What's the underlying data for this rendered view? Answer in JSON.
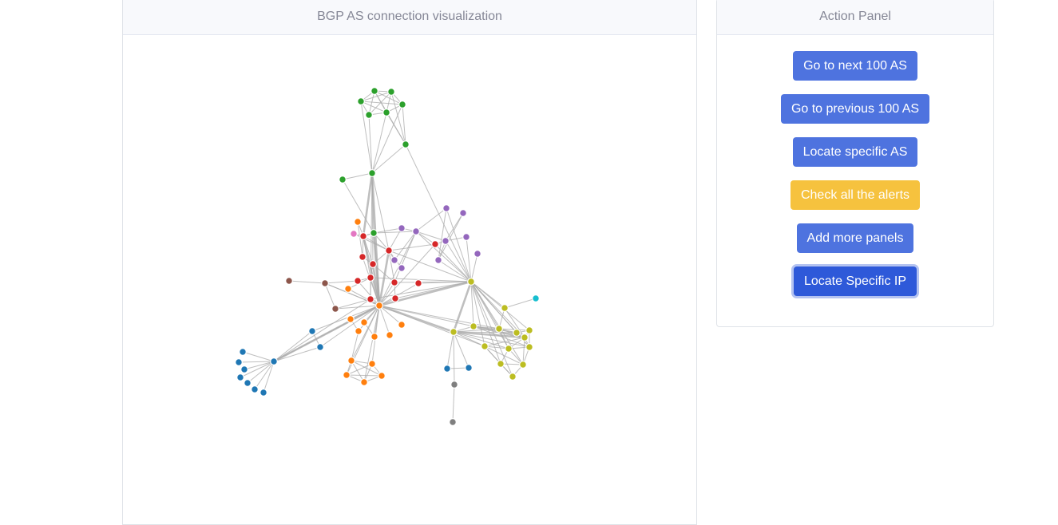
{
  "viz": {
    "title": "BGP AS connection visualization",
    "group_colors": {
      "green": "#2ca02c",
      "purple": "#9467bd",
      "red": "#d62728",
      "orange": "#ff7f0e",
      "pink": "#e377c2",
      "brown": "#8c564b",
      "blue": "#1f77b4",
      "olive": "#bcbd22",
      "cyan": "#17becf",
      "gray": "#7f7f7f"
    }
  },
  "action_panel": {
    "title": "Action Panel",
    "buttons": [
      {
        "label": "Go to next 100 AS",
        "style": "primary"
      },
      {
        "label": "Go to previous 100 AS",
        "style": "primary"
      },
      {
        "label": "Locate specific AS",
        "style": "primary"
      },
      {
        "label": "Check all the alerts",
        "style": "warning"
      },
      {
        "label": "Add more panels",
        "style": "primary"
      },
      {
        "label": "Locate Specific IP",
        "style": "primary-focused"
      }
    ]
  }
}
